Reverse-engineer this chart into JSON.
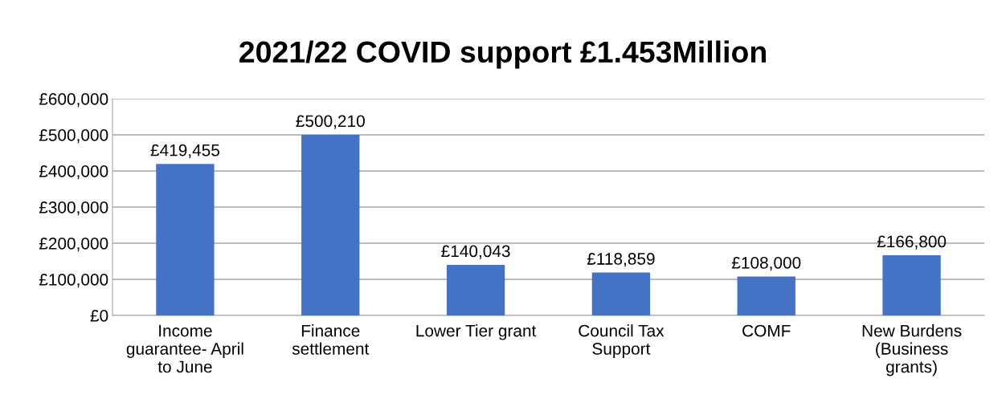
{
  "chart_data": {
    "type": "bar",
    "title": "2021/22 COVID support £1.453Million",
    "categories": [
      "Income\nguarantee- April\nto June",
      "Finance\nsettlement",
      "Lower Tier grant",
      "Council Tax\nSupport",
      "COMF",
      "New Burdens\n(Business\ngrants)"
    ],
    "values": [
      419455,
      500210,
      140043,
      118859,
      108000,
      166800
    ],
    "value_labels": [
      "£419,455",
      "£500,210",
      "£140,043",
      "£118,859",
      "£108,000",
      "£166,800"
    ],
    "color": "#4472c4",
    "ylim": [
      0,
      600000
    ],
    "yticks": [
      {
        "value": 0,
        "label": "£0"
      },
      {
        "value": 100000,
        "label": "£100,000"
      },
      {
        "value": 200000,
        "label": "£200,000"
      },
      {
        "value": 300000,
        "label": "£300,000"
      },
      {
        "value": 400000,
        "label": "£400,000"
      },
      {
        "value": 500000,
        "label": "£500,000"
      },
      {
        "value": 600000,
        "label": "£600,000"
      }
    ],
    "grid": "y"
  }
}
